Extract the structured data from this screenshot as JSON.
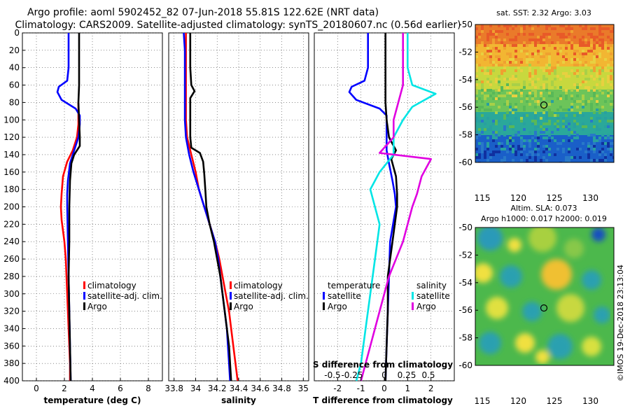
{
  "header": {
    "line1": "Argo profile: aoml 5902452_82 07-Jun-2018 55.81S 122.62E (NRT data)",
    "line2": "Climatology: CARS2009. Satellite-adjusted climatology: synTS_20180607.nc (0.56d earlier)"
  },
  "colors": {
    "climatology": "#ff0000",
    "satellite": "#0000ff",
    "argo": "#000000",
    "sat_salinity": "#00e5e5",
    "argo_salinity": "#e000e0"
  },
  "chart_data": [
    {
      "type": "line",
      "id": "temperature",
      "xlabel": "temperature (deg C)",
      "ylabel": "",
      "xlim": [
        -1,
        9
      ],
      "ylim": [
        400,
        0
      ],
      "xticks": [
        "0",
        "2",
        "4",
        "6",
        "8"
      ],
      "yticks": [
        "0",
        "20",
        "40",
        "60",
        "80",
        "100",
        "120",
        "140",
        "160",
        "180",
        "200",
        "220",
        "240",
        "260",
        "280",
        "300",
        "320",
        "340",
        "360",
        "380",
        "400"
      ],
      "grid": true,
      "legend": [
        "climatology",
        "satellite-adj. clim.",
        "Argo"
      ],
      "series": [
        {
          "name": "climatology",
          "color": "#ff0000",
          "points": [
            [
              3.0,
              80
            ],
            [
              3.0,
              95
            ],
            [
              3.0,
              105
            ],
            [
              2.9,
              120
            ],
            [
              2.6,
              135
            ],
            [
              2.2,
              148
            ],
            [
              1.9,
              165
            ],
            [
              1.8,
              185
            ],
            [
              1.75,
              200
            ],
            [
              1.8,
              215
            ],
            [
              2.0,
              240
            ],
            [
              2.1,
              260
            ],
            [
              2.15,
              280
            ],
            [
              2.2,
              300
            ],
            [
              2.25,
              320
            ],
            [
              2.3,
              340
            ],
            [
              2.35,
              360
            ],
            [
              2.4,
              380
            ],
            [
              2.4,
              400
            ]
          ]
        },
        {
          "name": "satellite-adj. clim.",
          "color": "#0000ff",
          "points": [
            [
              2.3,
              0
            ],
            [
              2.3,
              20
            ],
            [
              2.3,
              40
            ],
            [
              2.2,
              55
            ],
            [
              1.6,
              62
            ],
            [
              1.5,
              68
            ],
            [
              1.8,
              77
            ],
            [
              2.8,
              87
            ],
            [
              3.1,
              95
            ],
            [
              3.1,
              105
            ],
            [
              3.0,
              120
            ],
            [
              2.7,
              135
            ],
            [
              2.4,
              150
            ],
            [
              2.25,
              170
            ],
            [
              2.2,
              185
            ],
            [
              2.2,
              200
            ],
            [
              2.25,
              240
            ],
            [
              2.3,
              280
            ],
            [
              2.35,
              320
            ],
            [
              2.4,
              360
            ],
            [
              2.45,
              400
            ]
          ]
        },
        {
          "name": "Argo",
          "color": "#000000",
          "points": [
            [
              3.05,
              0
            ],
            [
              3.05,
              20
            ],
            [
              3.05,
              40
            ],
            [
              3.05,
              60
            ],
            [
              3.0,
              80
            ],
            [
              3.05,
              100
            ],
            [
              3.1,
              120
            ],
            [
              3.1,
              130
            ],
            [
              2.7,
              140
            ],
            [
              2.5,
              150
            ],
            [
              2.4,
              170
            ],
            [
              2.35,
              200
            ],
            [
              2.35,
              240
            ],
            [
              2.3,
              280
            ],
            [
              2.35,
              320
            ],
            [
              2.4,
              360
            ],
            [
              2.45,
              400
            ]
          ]
        }
      ]
    },
    {
      "type": "line",
      "id": "salinity",
      "xlabel": "salinity",
      "xlim": [
        33.75,
        35.05
      ],
      "ylim": [
        400,
        0
      ],
      "xticks": [
        "33.8",
        "34",
        "34.2",
        "34.4",
        "34.6",
        "34.8",
        "35"
      ],
      "grid": true,
      "legend": [
        "climatology",
        "satellite-adj. clim.",
        "Argo"
      ],
      "series": [
        {
          "name": "climatology",
          "color": "#ff0000",
          "points": [
            [
              33.91,
              0
            ],
            [
              33.91,
              20
            ],
            [
              33.91,
              40
            ],
            [
              33.91,
              60
            ],
            [
              33.91,
              80
            ],
            [
              33.91,
              100
            ],
            [
              33.92,
              120
            ],
            [
              33.96,
              140
            ],
            [
              34.0,
              160
            ],
            [
              34.03,
              180
            ],
            [
              34.08,
              200
            ],
            [
              34.13,
              220
            ],
            [
              34.18,
              240
            ],
            [
              34.22,
              260
            ],
            [
              34.25,
              280
            ],
            [
              34.28,
              300
            ],
            [
              34.31,
              320
            ],
            [
              34.33,
              340
            ],
            [
              34.35,
              360
            ],
            [
              34.37,
              380
            ],
            [
              34.39,
              400
            ]
          ]
        },
        {
          "name": "satellite-adj. clim.",
          "color": "#0000ff",
          "points": [
            [
              33.89,
              0
            ],
            [
              33.9,
              20
            ],
            [
              33.9,
              40
            ],
            [
              33.9,
              60
            ],
            [
              33.9,
              80
            ],
            [
              33.9,
              100
            ],
            [
              33.91,
              120
            ],
            [
              33.94,
              140
            ],
            [
              33.98,
              160
            ],
            [
              34.03,
              180
            ],
            [
              34.08,
              200
            ],
            [
              34.13,
              220
            ],
            [
              34.18,
              240
            ],
            [
              34.21,
              260
            ],
            [
              34.23,
              280
            ],
            [
              34.25,
              300
            ],
            [
              34.27,
              320
            ],
            [
              34.29,
              340
            ],
            [
              34.3,
              360
            ],
            [
              34.31,
              380
            ],
            [
              34.32,
              400
            ]
          ]
        },
        {
          "name": "Argo",
          "color": "#000000",
          "points": [
            [
              33.95,
              0
            ],
            [
              33.95,
              20
            ],
            [
              33.95,
              40
            ],
            [
              33.96,
              60
            ],
            [
              33.99,
              67
            ],
            [
              33.95,
              75
            ],
            [
              33.95,
              85
            ],
            [
              33.95,
              100
            ],
            [
              33.95,
              120
            ],
            [
              33.96,
              132
            ],
            [
              34.04,
              138
            ],
            [
              34.07,
              148
            ],
            [
              34.08,
              162
            ],
            [
              34.09,
              180
            ],
            [
              34.1,
              200
            ],
            [
              34.13,
              220
            ],
            [
              34.17,
              240
            ],
            [
              34.2,
              260
            ],
            [
              34.23,
              280
            ],
            [
              34.25,
              300
            ],
            [
              34.27,
              320
            ],
            [
              34.29,
              340
            ],
            [
              34.31,
              360
            ],
            [
              34.32,
              380
            ],
            [
              34.33,
              400
            ]
          ]
        }
      ]
    },
    {
      "type": "line",
      "id": "difference",
      "xlabel": "T difference from climatology",
      "xlim": [
        -3,
        3
      ],
      "ylim": [
        400,
        0
      ],
      "xticks": [
        "-2",
        "-1",
        "0",
        "1",
        "2"
      ],
      "s_axis_label": "S difference from climatology",
      "s_ticks": [
        "-0.5",
        "-0.25",
        "0",
        "0.25",
        "0.5"
      ],
      "grid": true,
      "legend_left_title": "temperature",
      "legend_right_title": "salinity",
      "legend_left": [
        "satellite",
        "Argo"
      ],
      "legend_right": [
        "satellite",
        "Argo"
      ],
      "series": [
        {
          "name": "T satellite",
          "color": "#0000ff",
          "points": [
            [
              -0.7,
              0
            ],
            [
              -0.7,
              20
            ],
            [
              -0.7,
              40
            ],
            [
              -0.85,
              55
            ],
            [
              -1.4,
              62
            ],
            [
              -1.5,
              68
            ],
            [
              -1.2,
              77
            ],
            [
              -0.2,
              87
            ],
            [
              0.1,
              95
            ],
            [
              0.1,
              105
            ],
            [
              0.1,
              120
            ],
            [
              0.1,
              135
            ],
            [
              0.2,
              150
            ],
            [
              0.35,
              170
            ],
            [
              0.45,
              185
            ],
            [
              0.5,
              200
            ],
            [
              0.25,
              240
            ],
            [
              0.2,
              280
            ],
            [
              0.15,
              320
            ],
            [
              0.1,
              360
            ],
            [
              0.05,
              400
            ]
          ]
        },
        {
          "name": "T Argo",
          "color": "#000000",
          "points": [
            [
              0.05,
              0
            ],
            [
              0.05,
              20
            ],
            [
              0.05,
              40
            ],
            [
              0.05,
              60
            ],
            [
              0.05,
              80
            ],
            [
              0.1,
              100
            ],
            [
              0.2,
              120
            ],
            [
              0.5,
              135
            ],
            [
              0.3,
              145
            ],
            [
              0.5,
              165
            ],
            [
              0.55,
              185
            ],
            [
              0.55,
              200
            ],
            [
              0.35,
              240
            ],
            [
              0.15,
              280
            ],
            [
              0.15,
              320
            ],
            [
              0.1,
              360
            ],
            [
              0.05,
              400
            ]
          ]
        },
        {
          "name": "S satellite",
          "color": "#00e5e5",
          "points": [
            [
              0.25,
              0
            ],
            [
              0.25,
              20
            ],
            [
              0.25,
              40
            ],
            [
              0.3,
              60
            ],
            [
              0.55,
              70
            ],
            [
              0.3,
              85
            ],
            [
              0.2,
              100
            ],
            [
              0.1,
              120
            ],
            [
              0.1,
              140
            ],
            [
              -0.05,
              160
            ],
            [
              -0.15,
              180
            ],
            [
              -0.05,
              220
            ],
            [
              -0.1,
              260
            ],
            [
              -0.15,
              300
            ],
            [
              -0.2,
              340
            ],
            [
              -0.25,
              380
            ],
            [
              -0.3,
              400
            ]
          ]
        },
        {
          "name": "S Argo",
          "color": "#e000e0",
          "points": [
            [
              0.2,
              0
            ],
            [
              0.2,
              20
            ],
            [
              0.2,
              40
            ],
            [
              0.2,
              60
            ],
            [
              0.15,
              80
            ],
            [
              0.1,
              100
            ],
            [
              0.1,
              120
            ],
            [
              -0.05,
              138
            ],
            [
              0.5,
              145
            ],
            [
              0.4,
              165
            ],
            [
              0.35,
              185
            ],
            [
              0.3,
              200
            ],
            [
              0.2,
              240
            ],
            [
              0.05,
              280
            ],
            [
              -0.05,
              320
            ],
            [
              -0.15,
              360
            ],
            [
              -0.25,
              400
            ]
          ]
        }
      ]
    }
  ],
  "maps": [
    {
      "id": "sst",
      "title": "sat. SST: 2.32 Argo: 3.03",
      "xticks": [
        "115",
        "120",
        "125",
        "130"
      ],
      "yticks": [
        "-50",
        "-52",
        "-54",
        "-56",
        "-58",
        "-60"
      ]
    },
    {
      "id": "sla",
      "title_line1": "Altim. SLA: 0.073",
      "title_line2": "Argo h1000: 0.017 h2000: 0.019",
      "xticks": [
        "115",
        "120",
        "125",
        "130"
      ],
      "yticks": [
        "-50",
        "-52",
        "-54",
        "-56",
        "-58",
        "-60"
      ]
    }
  ],
  "footer": {
    "credit": "©IMOS 19-Dec-2018 23:13:04"
  }
}
